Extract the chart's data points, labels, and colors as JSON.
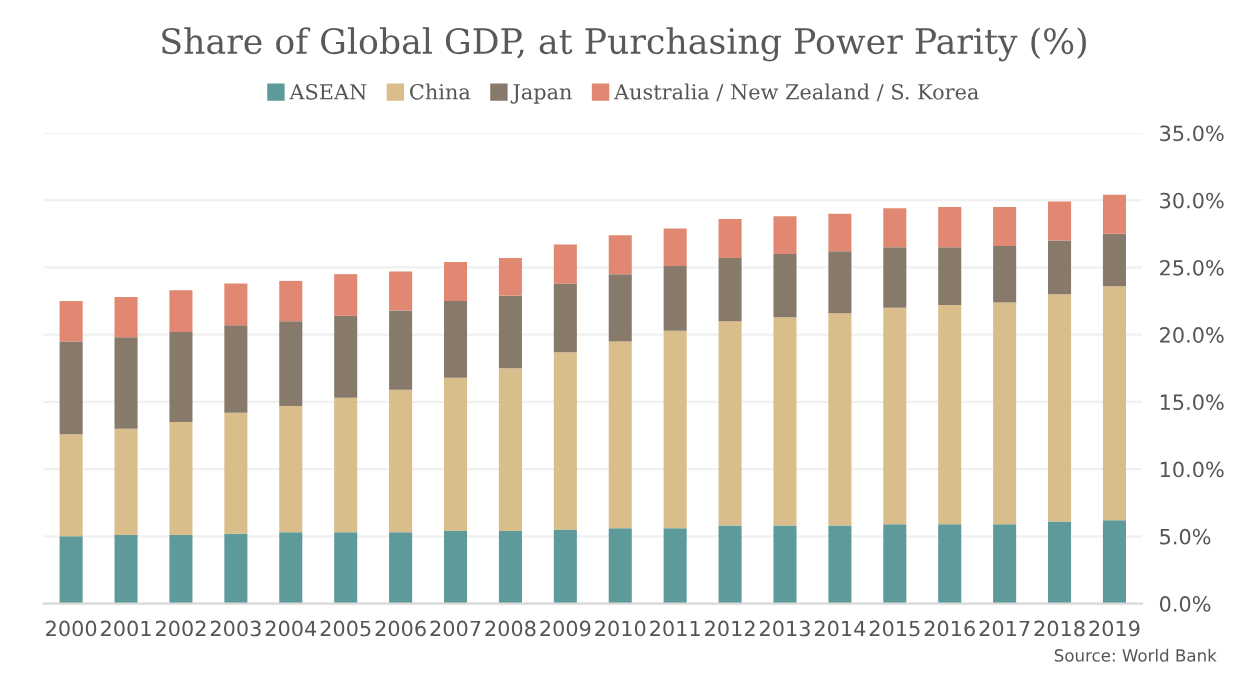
{
  "chart_data": {
    "type": "bar",
    "stacked": true,
    "title": "Share of Global GDP, at Purchasing Power Parity (%)",
    "categories": [
      "2000",
      "2001",
      "2002",
      "2003",
      "2004",
      "2005",
      "2006",
      "2007",
      "2008",
      "2009",
      "2010",
      "2011",
      "2012",
      "2013",
      "2014",
      "2015",
      "2016",
      "2017",
      "2018",
      "2019"
    ],
    "series": [
      {
        "name": "ASEAN",
        "color": "#5f9a9b",
        "values": [
          5.0,
          5.1,
          5.1,
          5.2,
          5.3,
          5.3,
          5.3,
          5.4,
          5.4,
          5.5,
          5.6,
          5.6,
          5.8,
          5.8,
          5.8,
          5.9,
          5.9,
          5.9,
          6.1,
          6.2
        ]
      },
      {
        "name": "China",
        "color": "#d9bd8a",
        "values": [
          7.6,
          7.9,
          8.4,
          9.0,
          9.4,
          10.0,
          10.6,
          11.4,
          12.1,
          13.2,
          13.9,
          14.7,
          15.2,
          15.5,
          15.8,
          16.1,
          16.3,
          16.5,
          16.9,
          17.4
        ]
      },
      {
        "name": "Japan",
        "color": "#877a6b",
        "values": [
          6.9,
          6.8,
          6.7,
          6.5,
          6.3,
          6.1,
          5.9,
          5.7,
          5.4,
          5.1,
          5.0,
          4.8,
          4.7,
          4.7,
          4.6,
          4.5,
          4.3,
          4.2,
          4.0,
          3.9
        ]
      },
      {
        "name": "Australia / New Zealand / S. Korea",
        "color": "#e08872",
        "values": [
          3.0,
          3.0,
          3.1,
          3.1,
          3.0,
          3.1,
          2.9,
          2.9,
          2.8,
          2.9,
          2.9,
          2.8,
          2.9,
          2.8,
          2.8,
          2.9,
          3.0,
          2.9,
          2.9,
          2.9
        ]
      }
    ],
    "ylim": [
      0,
      35
    ],
    "yticks": [
      {
        "value": 0,
        "label": "0.0%"
      },
      {
        "value": 5,
        "label": "5.0%"
      },
      {
        "value": 10,
        "label": "10.0%"
      },
      {
        "value": 15,
        "label": "15.0%"
      },
      {
        "value": 20,
        "label": "20.0%"
      },
      {
        "value": 25,
        "label": "25.0%"
      },
      {
        "value": 30,
        "label": "30.0%"
      },
      {
        "value": 35,
        "label": "35.0%"
      }
    ],
    "grid": "y",
    "legend": "top",
    "annotations": [
      "Source: World Bank"
    ]
  }
}
